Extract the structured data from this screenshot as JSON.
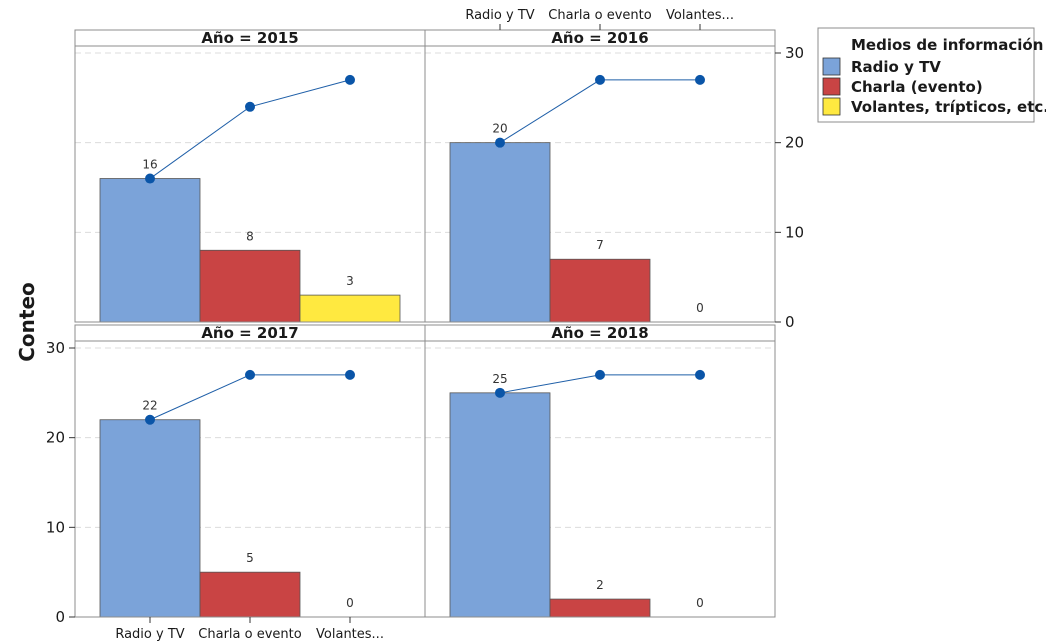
{
  "chart_data": {
    "type": "bar",
    "ylabel": "Conteo",
    "categories": [
      "Radio y TV",
      "Charla o evento",
      "Volantes..."
    ],
    "ylim": [
      0,
      30
    ],
    "yticks": [
      0,
      10,
      20,
      30
    ],
    "grid": true,
    "legend": {
      "title": "Medios de información",
      "placement": "right",
      "entries": [
        {
          "label": "Radio y TV",
          "color": "#7ba3d9"
        },
        {
          "label": "Charla (evento)",
          "color": "#c94444"
        },
        {
          "label": "Volantes, trípticos, etc.",
          "color": "#ffe940"
        }
      ]
    },
    "panels": [
      {
        "title": "Año = 2015",
        "values": [
          16,
          8,
          3
        ],
        "cumulative": [
          16,
          24,
          27
        ]
      },
      {
        "title": "Año = 2016",
        "values": [
          20,
          7,
          0
        ],
        "cumulative": [
          20,
          27,
          27
        ]
      },
      {
        "title": "Año = 2017",
        "values": [
          22,
          5,
          0
        ],
        "cumulative": [
          22,
          27,
          27
        ]
      },
      {
        "title": "Año = 2018",
        "values": [
          25,
          2,
          0
        ],
        "cumulative": [
          25,
          27,
          27
        ]
      }
    ]
  }
}
